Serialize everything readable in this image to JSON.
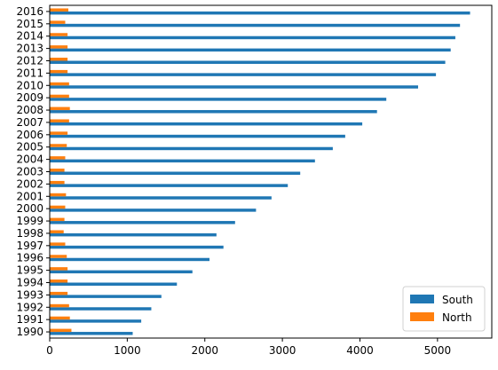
{
  "chart_data": {
    "type": "bar",
    "orientation": "horizontal",
    "title": "",
    "xlabel": "",
    "ylabel": "",
    "categories": [
      "1990",
      "1991",
      "1992",
      "1993",
      "1994",
      "1995",
      "1996",
      "1997",
      "1998",
      "1999",
      "2000",
      "2001",
      "2002",
      "2003",
      "2004",
      "2005",
      "2006",
      "2007",
      "2008",
      "2009",
      "2010",
      "2011",
      "2012",
      "2013",
      "2014",
      "2015",
      "2016"
    ],
    "series": [
      {
        "name": "South",
        "color": "#1f77b4",
        "values": [
          1070,
          1180,
          1310,
          1440,
          1640,
          1840,
          2060,
          2240,
          2150,
          2390,
          2660,
          2860,
          3070,
          3230,
          3420,
          3650,
          3810,
          4030,
          4220,
          4340,
          4750,
          4980,
          5100,
          5170,
          5230,
          5290,
          5420
        ]
      },
      {
        "name": "North",
        "color": "#ff7f0e",
        "values": [
          280,
          260,
          250,
          230,
          230,
          230,
          220,
          200,
          180,
          190,
          200,
          210,
          190,
          190,
          200,
          220,
          230,
          250,
          260,
          250,
          250,
          230,
          230,
          230,
          230,
          200,
          240
        ]
      }
    ],
    "xlim": [
      0,
      5700
    ],
    "xticks": [
      0,
      1000,
      2000,
      3000,
      4000,
      5000
    ],
    "grid": false,
    "legend_position": "lower right"
  }
}
